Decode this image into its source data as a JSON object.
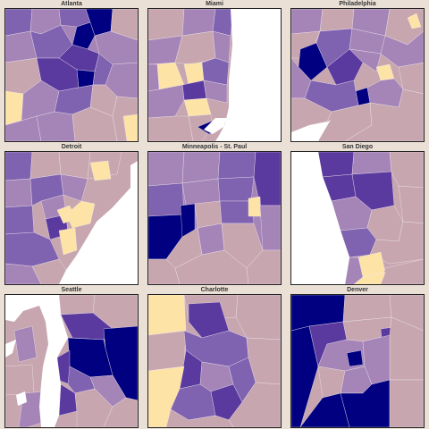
{
  "panels": [
    {
      "title": "Atlanta"
    },
    {
      "title": "Miami"
    },
    {
      "title": "Philadelphia"
    },
    {
      "title": "Detroit"
    },
    {
      "title": "Minneapolis - St. Paul"
    },
    {
      "title": "San Diego"
    },
    {
      "title": "Seattle"
    },
    {
      "title": "Charlotte"
    },
    {
      "title": "Denver"
    }
  ],
  "palette": {
    "page_background": "#ebe0d6",
    "water": "#ffffff",
    "level_1": "#fde3a6",
    "level_2": "#c7a6b0",
    "level_3": "#a584b8",
    "level_4": "#7f62b0",
    "level_5": "#5b3aa0",
    "level_6": "#000080",
    "boundary": "#f4eef0"
  }
}
